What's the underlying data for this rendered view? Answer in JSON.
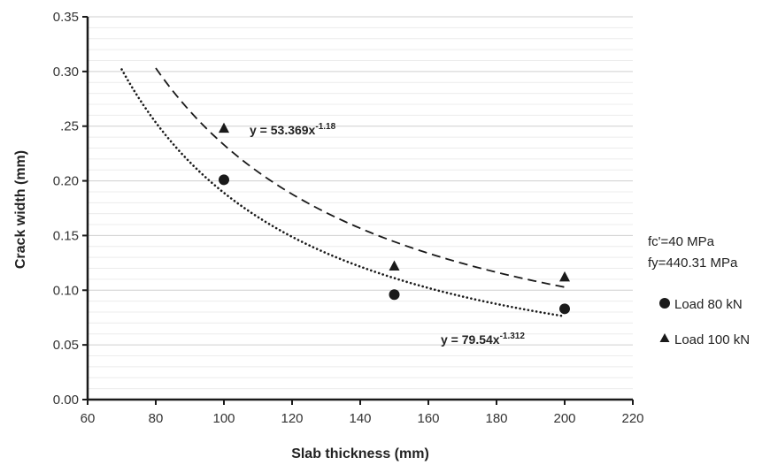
{
  "chart_data": {
    "type": "scatter",
    "title": "",
    "xlabel": "Slab thickness (mm)",
    "ylabel": "Crack width (mm)",
    "xlim": [
      60,
      220
    ],
    "ylim": [
      0,
      0.35
    ],
    "x_ticks": [
      "60",
      "80",
      "100",
      "120",
      "140",
      "160",
      "180",
      "200",
      "220"
    ],
    "y_ticks": [
      "0.00",
      "0.05",
      "0.10",
      "0.15",
      "0.20",
      ".25",
      "0.30",
      "0.35"
    ],
    "grid": true,
    "notes": [
      "fc'=40 MPa",
      "fy=440.31 MPa"
    ],
    "legend_position": "right",
    "series": [
      {
        "name": "Load 80 kN",
        "marker": "circle",
        "x": [
          100,
          150,
          200
        ],
        "y": [
          0.201,
          0.096,
          0.083
        ],
        "trendline": {
          "style": "dotted",
          "equation": "y = 79.54x",
          "exponent": "-1.312",
          "coef": 79.54,
          "power": -1.312,
          "x_range": [
            70,
            200
          ]
        }
      },
      {
        "name": "Load 100 kN",
        "marker": "triangle",
        "x": [
          100,
          150,
          200
        ],
        "y": [
          0.248,
          0.122,
          0.112
        ],
        "trendline": {
          "style": "dashed",
          "equation": "y = 53.369x",
          "exponent": "-1.18",
          "coef": 53.369,
          "power": -1.18,
          "x_range": [
            80,
            200
          ]
        }
      }
    ]
  }
}
